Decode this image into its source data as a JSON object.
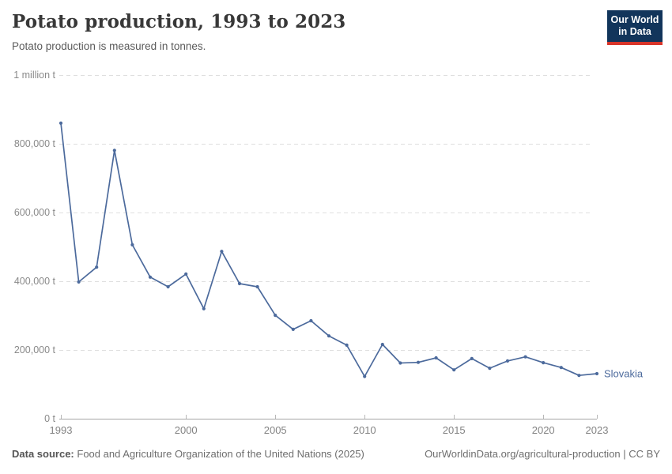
{
  "header": {
    "title": "Potato production, 1993 to 2023",
    "subtitle": "Potato production is measured in tonnes.",
    "logo": {
      "line1": "Our World",
      "line2": "in Data"
    }
  },
  "chart_data": {
    "type": "line",
    "title": "Potato production, 1993 to 2023",
    "xlabel": "",
    "ylabel": "tonnes",
    "xlim": [
      1993,
      2023
    ],
    "ylim": [
      0,
      1000000
    ],
    "grid": "horizontal-dashed",
    "legend_position": "end-of-line",
    "x_ticks": [
      1993,
      2000,
      2005,
      2010,
      2015,
      2020,
      2023
    ],
    "y_ticks": [
      {
        "value": 0,
        "label": "0 t"
      },
      {
        "value": 200000,
        "label": "200,000 t"
      },
      {
        "value": 400000,
        "label": "400,000 t"
      },
      {
        "value": 600000,
        "label": "600,000 t"
      },
      {
        "value": 800000,
        "label": "800,000 t"
      },
      {
        "value": 1000000,
        "label": "1 million t"
      }
    ],
    "x": [
      1993,
      1994,
      1995,
      1996,
      1997,
      1998,
      1999,
      2000,
      2001,
      2002,
      2003,
      2004,
      2005,
      2006,
      2007,
      2008,
      2009,
      2010,
      2011,
      2012,
      2013,
      2014,
      2015,
      2016,
      2017,
      2018,
      2019,
      2020,
      2021,
      2022,
      2023
    ],
    "series": [
      {
        "name": "Slovakia",
        "color": "#4c6a9c",
        "values": [
          860000,
          398000,
          441000,
          781000,
          506000,
          412000,
          384000,
          421000,
          320000,
          487000,
          393000,
          384000,
          301000,
          260000,
          285000,
          241000,
          214000,
          123000,
          216000,
          162000,
          164000,
          177000,
          142000,
          175000,
          147000,
          168000,
          180000,
          163000,
          149000,
          126000,
          131000
        ]
      }
    ],
    "style": {
      "gridline_color": "#dfdfdf",
      "axis_color": "#a6a6a6",
      "tick_color": "#b8b8b8",
      "y_label_color": "#8a8a8a",
      "x_label_color": "#838383"
    }
  },
  "footer": {
    "datasource_label": "Data source:",
    "datasource_text": "Food and Agriculture Organization of the United Nations (2025)",
    "credit": "OurWorldinData.org/agricultural-production | CC BY"
  }
}
